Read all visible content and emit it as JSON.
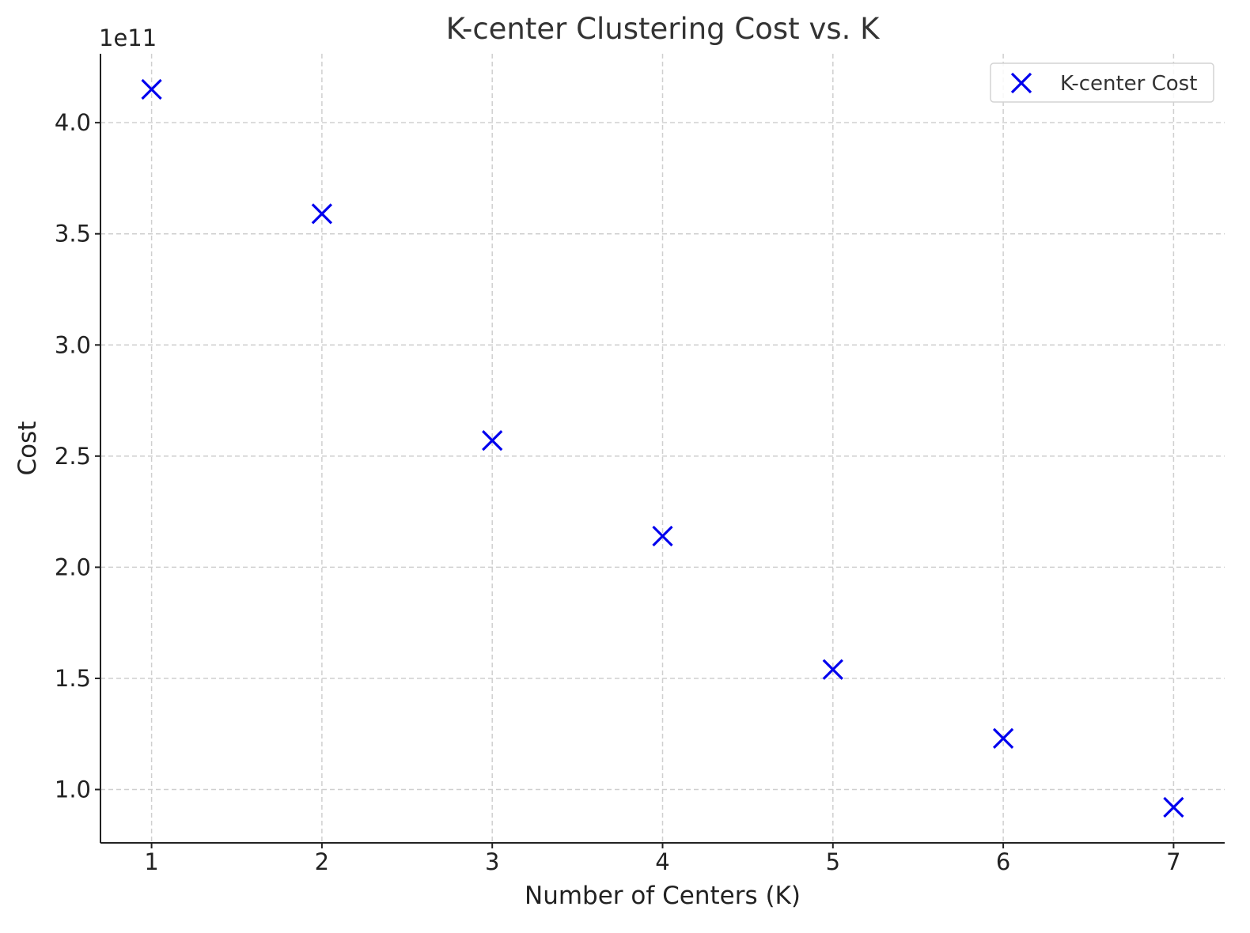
{
  "chart_data": {
    "type": "scatter",
    "title": "K-center Clustering Cost vs. K",
    "xlabel": "Number of Centers (K)",
    "ylabel": "Cost",
    "y_multiplier_label": "1e11",
    "y_multiplier": 100000000000.0,
    "xlim": [
      0.7,
      7.3
    ],
    "ylim": [
      0.76,
      4.31
    ],
    "xticks": [
      1,
      2,
      3,
      4,
      5,
      6,
      7
    ],
    "yticks": [
      1.0,
      1.5,
      2.0,
      2.5,
      3.0,
      3.5,
      4.0
    ],
    "grid": true,
    "legend_position": "top-right",
    "series": [
      {
        "name": "K-center Cost",
        "marker": "x",
        "color": "#0000ee",
        "x": [
          1,
          2,
          3,
          4,
          5,
          6,
          7
        ],
        "y": [
          4.15,
          3.59,
          2.57,
          2.14,
          1.54,
          1.23,
          0.92
        ]
      }
    ]
  }
}
